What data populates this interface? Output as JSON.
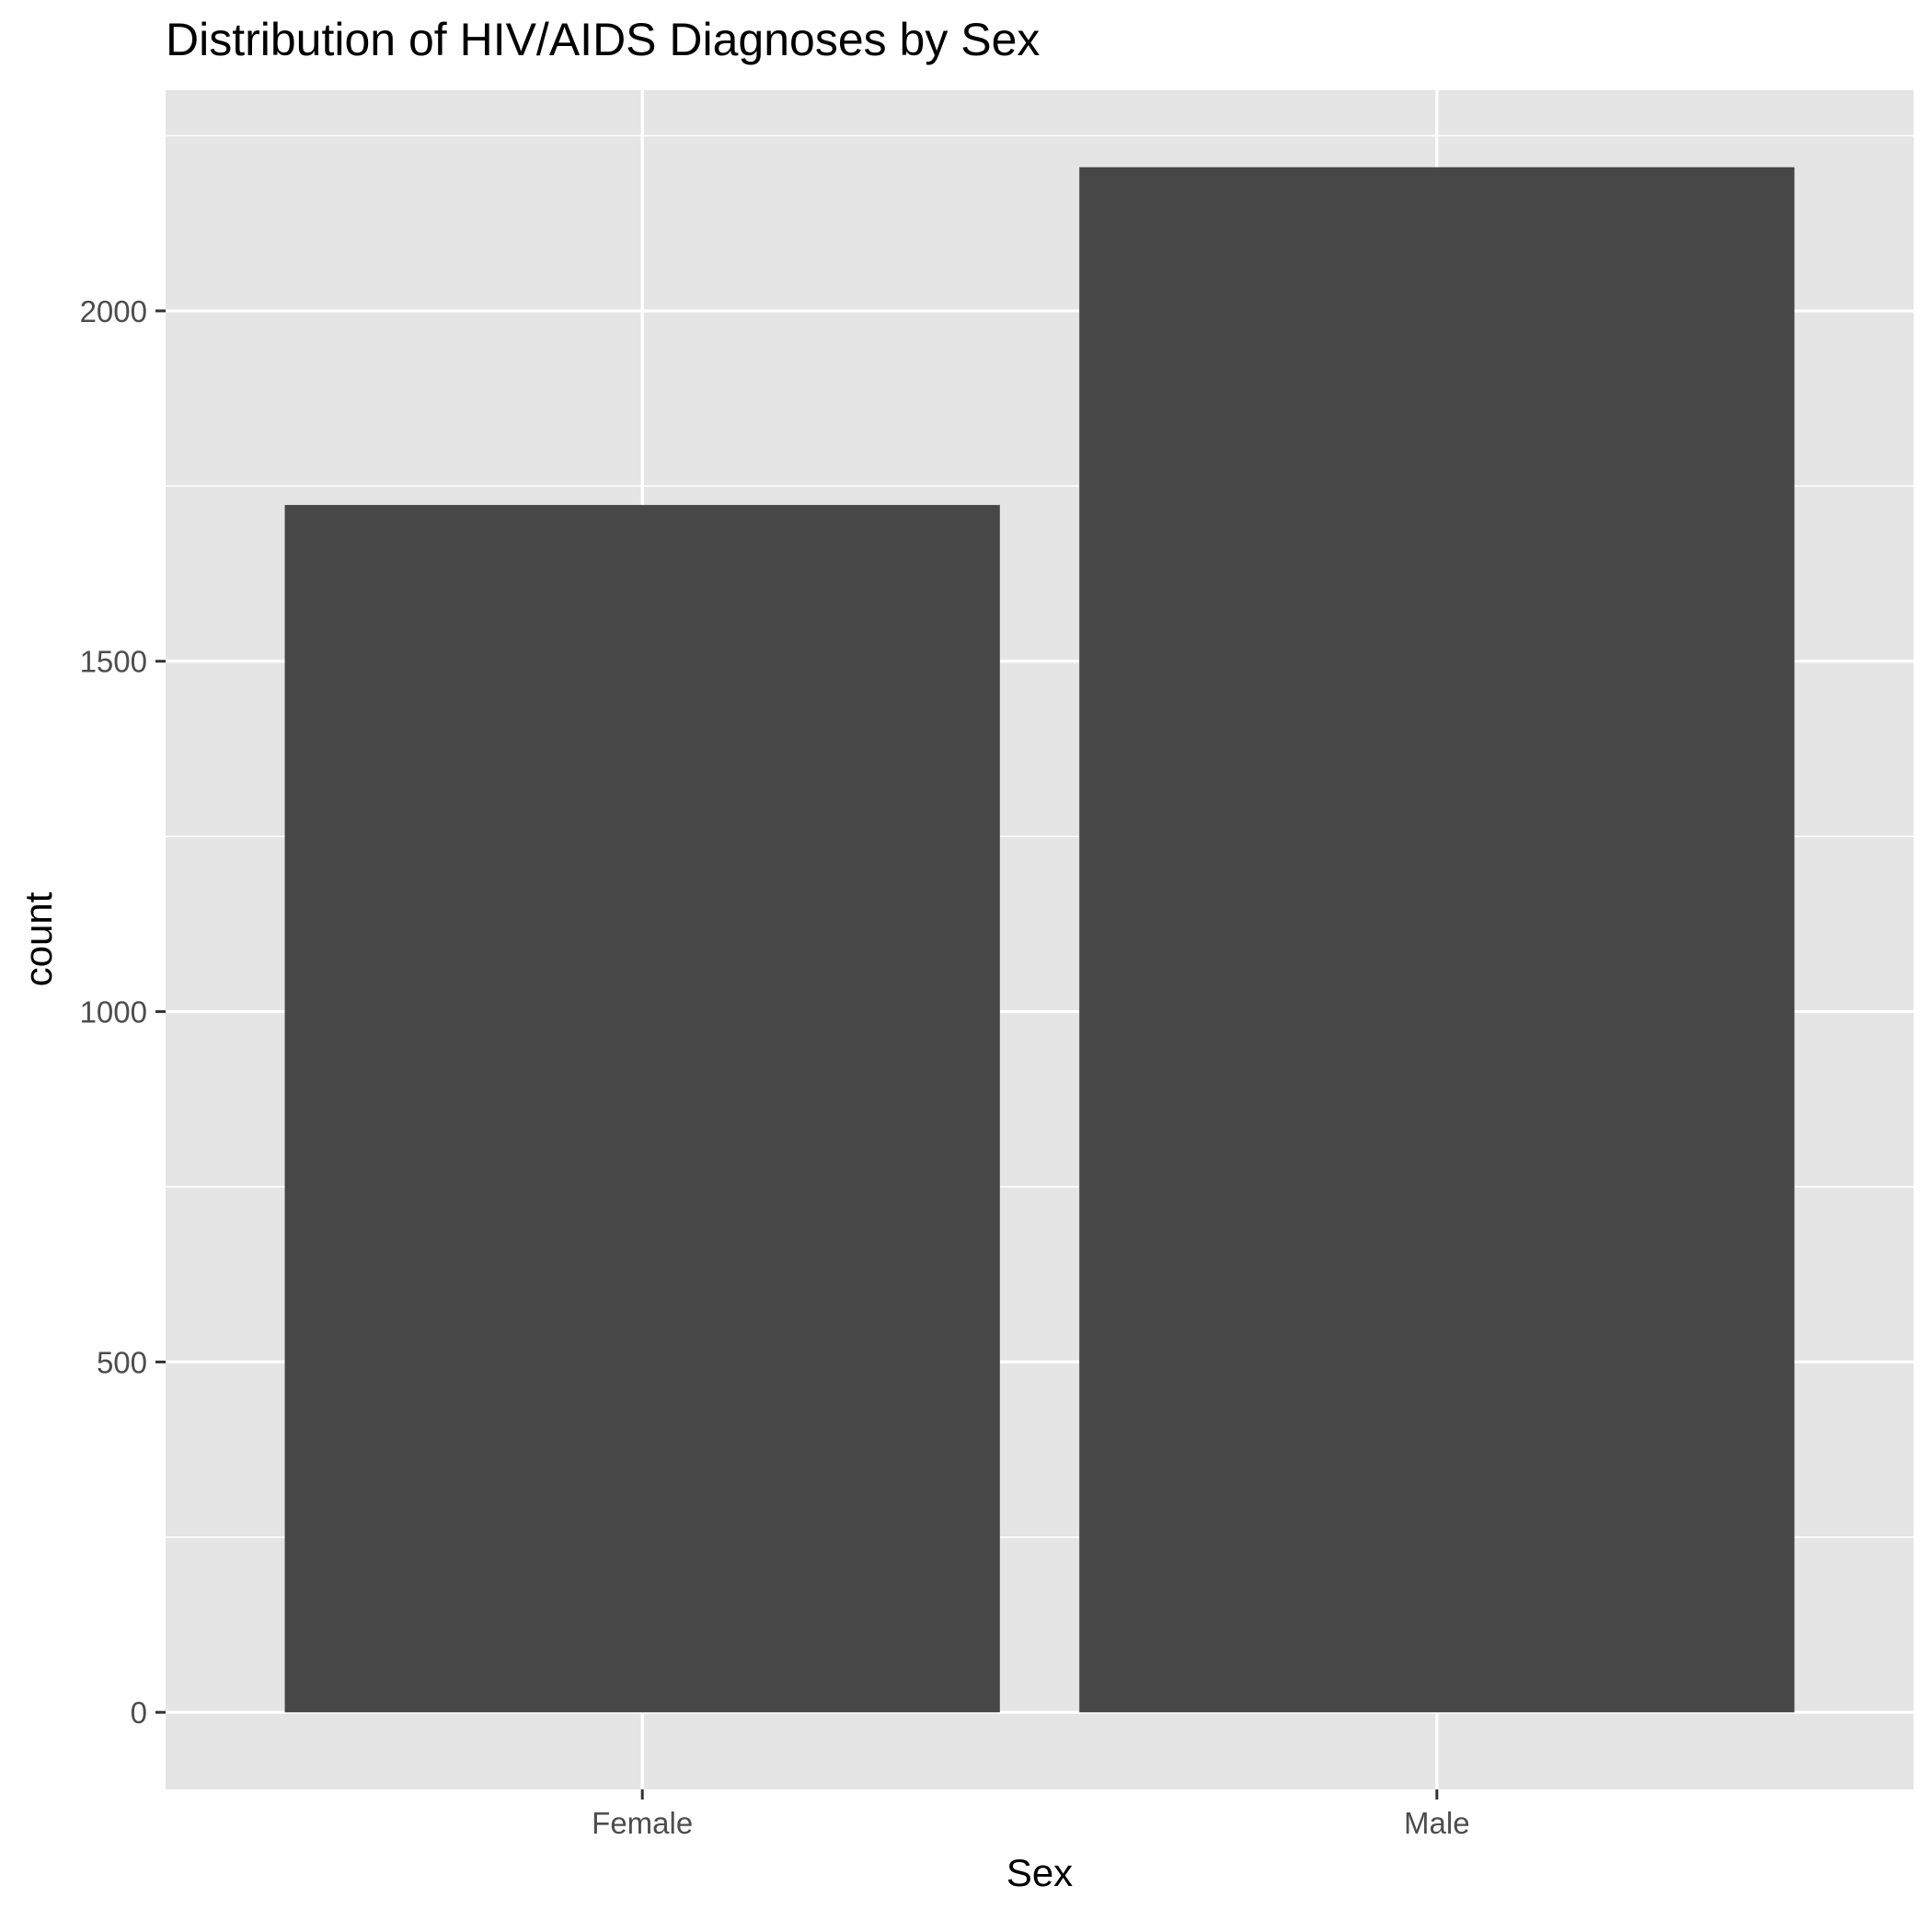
{
  "chart_data": {
    "type": "bar",
    "title": "Distribution of HIV/AIDS Diagnoses by Sex",
    "xlabel": "Sex",
    "ylabel": "count",
    "categories": [
      "Female",
      "Male"
    ],
    "values": [
      1723,
      2205
    ],
    "ylim": [
      -110,
      2315
    ],
    "yticks": [
      0,
      500,
      1000,
      1500,
      2000
    ],
    "ytick_labels": [
      "0",
      "500",
      "1000",
      "1500",
      "2000"
    ],
    "y_minor_ticks": [
      250,
      750,
      1250,
      1750,
      2250
    ],
    "grid": true,
    "legend": "none",
    "colors": {
      "panel": "#e5e5e5",
      "grid": "#ffffff",
      "bar": "#474747",
      "tick": "#333333"
    }
  }
}
